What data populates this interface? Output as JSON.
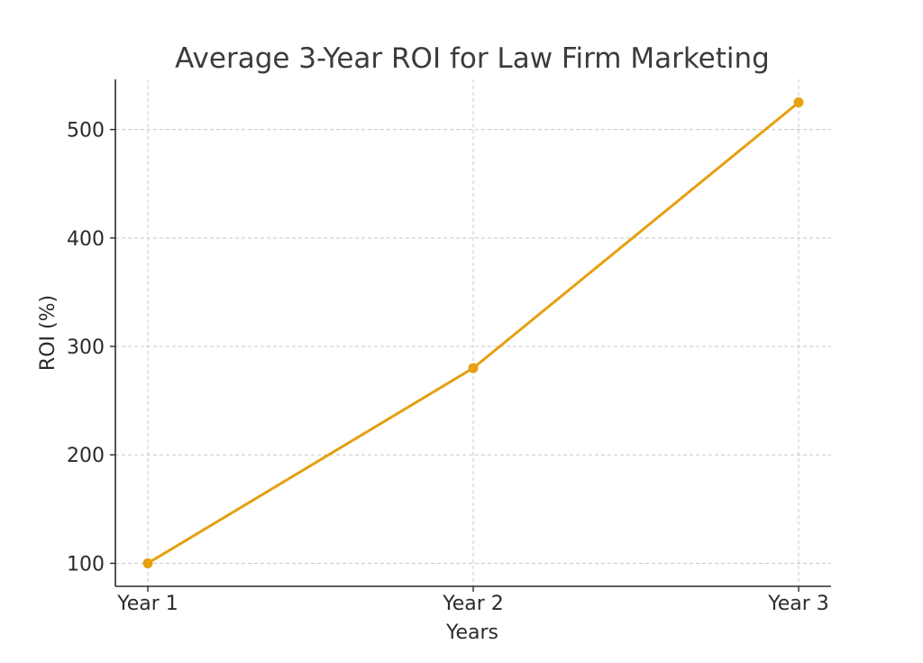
{
  "chart_data": {
    "type": "line",
    "title": "Average 3-Year ROI for Law Firm Marketing",
    "xlabel": "Years",
    "ylabel": "ROI (%)",
    "categories": [
      "Year 1",
      "Year 2",
      "Year 3"
    ],
    "series": [
      {
        "values": [
          100,
          280,
          525
        ],
        "color": "#E6A010"
      }
    ],
    "yticks": [
      100,
      200,
      300,
      400,
      500
    ],
    "ylim": [
      78.75,
      546.25
    ],
    "grid": true,
    "marker": "circle"
  }
}
